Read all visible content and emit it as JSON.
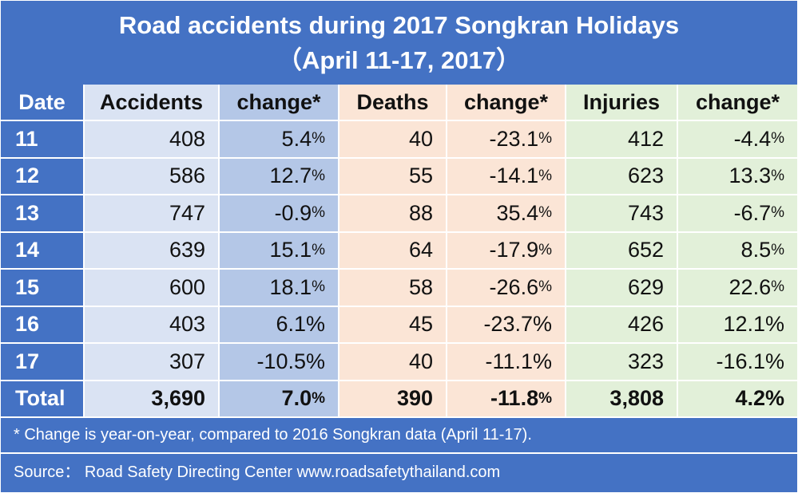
{
  "title_line1": "Road accidents during 2017 Songkran Holidays",
  "title_line2": "（April 11-17, 2017）",
  "headers": [
    "Date",
    "Accidents",
    "change*",
    "Deaths",
    "change*",
    "Injuries",
    "change*"
  ],
  "colors": {
    "frame": "#4472c4",
    "accidents_light": "#dae3f3",
    "accidents_dark": "#b4c7e7",
    "deaths_light": "#fbe5d6",
    "injuries_light": "#e2f0d9",
    "text": "#111111",
    "header_text": "#ffffff"
  },
  "chart_data": {
    "type": "table",
    "title": "Road accidents during 2017 Songkran Holidays (April 11-17, 2017)",
    "columns": [
      "Date",
      "Accidents",
      "change*",
      "Deaths",
      "change*",
      "Injuries",
      "change*"
    ],
    "rows": [
      {
        "date": "11",
        "accidents": "408",
        "acc_change": "5.4",
        "acc_pct": "%",
        "deaths": "40",
        "death_change": "-23.1",
        "death_pct": "%",
        "injuries": "412",
        "inj_change": "-4.4",
        "inj_pct": "%"
      },
      {
        "date": "12",
        "accidents": "586",
        "acc_change": "12.7",
        "acc_pct": "%",
        "deaths": "55",
        "death_change": "-14.1",
        "death_pct": "%",
        "injuries": "623",
        "inj_change": "13.3",
        "inj_pct": "%"
      },
      {
        "date": "13",
        "accidents": "747",
        "acc_change": "-0.9",
        "acc_pct": "%",
        "deaths": "88",
        "death_change": "35.4",
        "death_pct": "%",
        "injuries": "743",
        "inj_change": "-6.7",
        "inj_pct": "%"
      },
      {
        "date": "14",
        "accidents": "639",
        "acc_change": "15.1",
        "acc_pct": "%",
        "deaths": "64",
        "death_change": "-17.9",
        "death_pct": "%",
        "injuries": "652",
        "inj_change": "8.5",
        "inj_pct": "%"
      },
      {
        "date": "15",
        "accidents": "600",
        "acc_change": "18.1",
        "acc_pct": "%",
        "deaths": "58",
        "death_change": "-26.6",
        "death_pct": "%",
        "injuries": "629",
        "inj_change": "22.6",
        "inj_pct": "%"
      },
      {
        "date": "16",
        "accidents": "403",
        "acc_change": "6.1%",
        "acc_pct": "",
        "deaths": "45",
        "death_change": "-23.7%",
        "death_pct": "",
        "injuries": "426",
        "inj_change": "12.1%",
        "inj_pct": ""
      },
      {
        "date": "17",
        "accidents": "307",
        "acc_change": "-10.5%",
        "acc_pct": "",
        "deaths": "40",
        "death_change": "-11.1%",
        "death_pct": "",
        "injuries": "323",
        "inj_change": "-16.1%",
        "inj_pct": ""
      }
    ],
    "total": {
      "date": "Total",
      "accidents": "3,690",
      "acc_change": "7.0",
      "acc_pct": "%",
      "deaths": "390",
      "death_change": "-11.8",
      "death_pct": "%",
      "injuries": "3,808",
      "inj_change": "4.2%",
      "inj_pct": ""
    }
  },
  "footnote": "* Change is year-on-year, compared to 2016 Songkran data (April 11-17).",
  "source": "Source： Road Safety Directing Center www.roadsafetythailand.com"
}
